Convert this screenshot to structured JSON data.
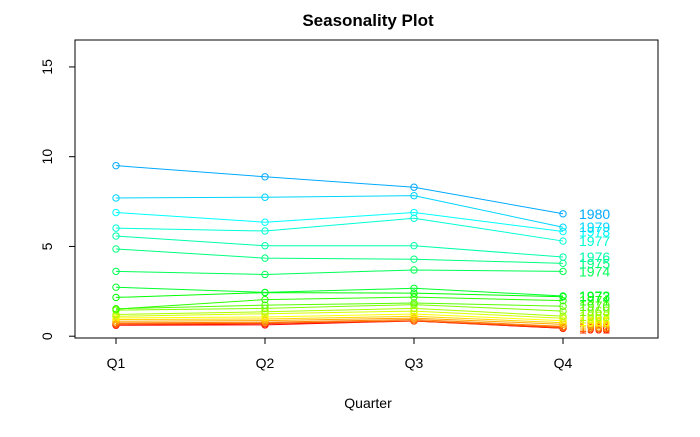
{
  "chart_data": {
    "type": "line",
    "title": "Seasonality Plot",
    "xlabel": "Quarter",
    "ylabel": "",
    "categories": [
      "Q1",
      "Q2",
      "Q3",
      "Q4"
    ],
    "ylim": [
      -0.1,
      16.5
    ],
    "yticks": [
      0,
      5,
      10,
      15
    ],
    "grid": false,
    "legend": "none",
    "series": [
      {
        "name": "1960",
        "color": "#FF0000",
        "values": [
          0.61,
          0.63,
          0.85,
          0.44
        ]
      },
      {
        "name": "1961",
        "color": "#FF2B00",
        "values": [
          0.63,
          0.7,
          0.85,
          0.44
        ]
      },
      {
        "name": "1962",
        "color": "#FF5500",
        "values": [
          0.69,
          0.72,
          0.86,
          0.5
        ]
      },
      {
        "name": "1963",
        "color": "#FF8000",
        "values": [
          0.74,
          0.78,
          0.93,
          0.55
        ]
      },
      {
        "name": "1964",
        "color": "#FFAA00",
        "values": [
          0.83,
          0.87,
          1.01,
          0.66
        ]
      },
      {
        "name": "1965",
        "color": "#FFD500",
        "values": [
          0.93,
          0.96,
          1.11,
          0.75
        ]
      },
      {
        "name": "1966",
        "color": "#FFFF00",
        "values": [
          1.02,
          1.07,
          1.24,
          0.86
        ]
      },
      {
        "name": "1967",
        "color": "#D5FF00",
        "values": [
          1.11,
          1.25,
          1.4,
          1.0
        ]
      },
      {
        "name": "1968",
        "color": "#AAFF00",
        "values": [
          1.21,
          1.36,
          1.55,
          1.12
        ]
      },
      {
        "name": "1969",
        "color": "#80FF00",
        "values": [
          1.45,
          1.55,
          1.76,
          1.4
        ]
      },
      {
        "name": "1970",
        "color": "#55FF00",
        "values": [
          1.53,
          1.73,
          1.85,
          1.67
        ]
      },
      {
        "name": "1971",
        "color": "#2BFF00",
        "values": [
          1.51,
          2.04,
          2.18,
          1.98
        ]
      },
      {
        "name": "1972",
        "color": "#00FF00",
        "values": [
          2.16,
          2.43,
          2.4,
          2.2
        ]
      },
      {
        "name": "1973",
        "color": "#00FF2B",
        "values": [
          2.73,
          2.44,
          2.67,
          2.24
        ]
      },
      {
        "name": "1974",
        "color": "#00FF55",
        "values": [
          3.61,
          3.44,
          3.69,
          3.61
        ]
      },
      {
        "name": "1975",
        "color": "#00FF80",
        "values": [
          4.86,
          4.35,
          4.29,
          4.06
        ]
      },
      {
        "name": "1976",
        "color": "#00FFAA",
        "values": [
          5.58,
          5.04,
          5.04,
          4.41
        ]
      },
      {
        "name": "1977",
        "color": "#00FFD5",
        "values": [
          6.02,
          5.86,
          6.57,
          5.3
        ]
      },
      {
        "name": "1978",
        "color": "#00FFFF",
        "values": [
          6.89,
          6.35,
          6.89,
          5.83
        ]
      },
      {
        "name": "1979",
        "color": "#00D5FF",
        "values": [
          7.7,
          7.74,
          7.83,
          6.07
        ]
      },
      {
        "name": "1980",
        "color": "#00AAFF",
        "values": [
          9.5,
          8.88,
          8.3,
          6.82
        ]
      }
    ]
  }
}
